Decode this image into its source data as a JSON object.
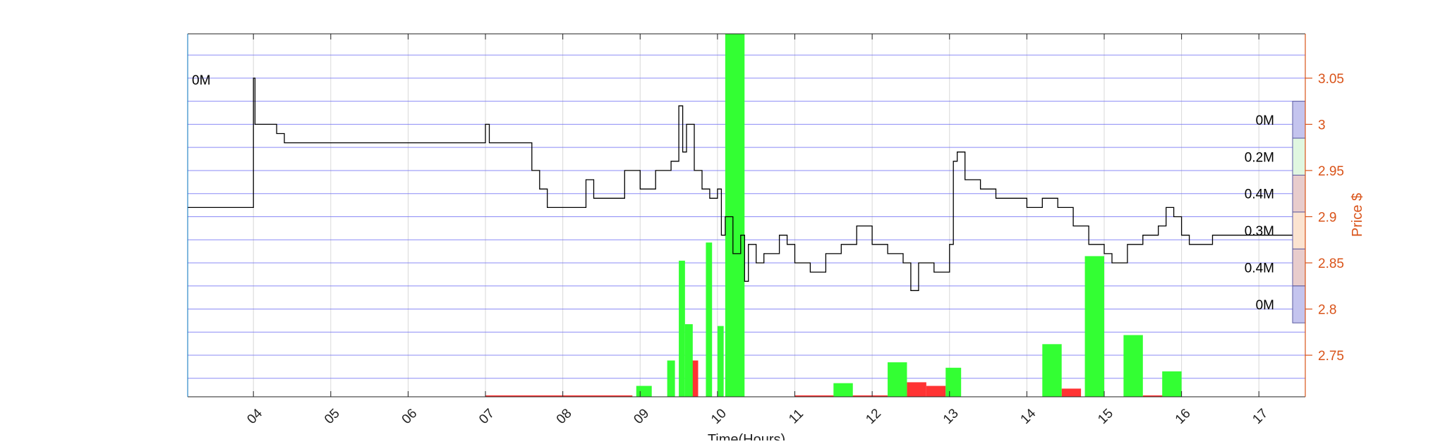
{
  "chart_data": {
    "type": "line",
    "xlabel": "Time(Hours)",
    "ylabel_right": "Price $",
    "x_ticks": [
      "04",
      "05",
      "06",
      "07",
      "08",
      "09",
      "10",
      "11",
      "12",
      "13",
      "14",
      "15",
      "16",
      "17"
    ],
    "x_range": [
      3.15,
      17.6
    ],
    "y_ticks": [
      2.75,
      2.8,
      2.85,
      2.9,
      2.95,
      3.0,
      3.05
    ],
    "y_range": [
      2.705,
      3.098
    ],
    "grid": true,
    "price_series": {
      "name": "Price",
      "points": [
        [
          3.15,
          2.91
        ],
        [
          4.0,
          2.91
        ],
        [
          4.0,
          3.05
        ],
        [
          4.02,
          3.0
        ],
        [
          4.2,
          3.0
        ],
        [
          4.3,
          2.99
        ],
        [
          4.4,
          2.98
        ],
        [
          5.5,
          2.98
        ],
        [
          6.9,
          2.98
        ],
        [
          7.0,
          3.0
        ],
        [
          7.05,
          2.98
        ],
        [
          7.5,
          2.98
        ],
        [
          7.6,
          2.95
        ],
        [
          7.7,
          2.93
        ],
        [
          7.8,
          2.91
        ],
        [
          8.0,
          2.91
        ],
        [
          8.3,
          2.94
        ],
        [
          8.4,
          2.92
        ],
        [
          8.7,
          2.92
        ],
        [
          8.8,
          2.95
        ],
        [
          9.0,
          2.93
        ],
        [
          9.2,
          2.95
        ],
        [
          9.4,
          2.96
        ],
        [
          9.5,
          3.02
        ],
        [
          9.55,
          2.97
        ],
        [
          9.6,
          3.0
        ],
        [
          9.7,
          2.95
        ],
        [
          9.8,
          2.93
        ],
        [
          9.9,
          2.92
        ],
        [
          10.0,
          2.93
        ],
        [
          10.05,
          2.88
        ],
        [
          10.1,
          2.9
        ],
        [
          10.2,
          2.86
        ],
        [
          10.3,
          2.88
        ],
        [
          10.35,
          2.83
        ],
        [
          10.4,
          2.87
        ],
        [
          10.5,
          2.85
        ],
        [
          10.6,
          2.86
        ],
        [
          10.8,
          2.88
        ],
        [
          10.9,
          2.87
        ],
        [
          11.0,
          2.85
        ],
        [
          11.2,
          2.84
        ],
        [
          11.4,
          2.86
        ],
        [
          11.6,
          2.87
        ],
        [
          11.8,
          2.89
        ],
        [
          12.0,
          2.87
        ],
        [
          12.2,
          2.86
        ],
        [
          12.4,
          2.85
        ],
        [
          12.5,
          2.82
        ],
        [
          12.6,
          2.85
        ],
        [
          12.8,
          2.84
        ],
        [
          12.9,
          2.84
        ],
        [
          13.0,
          2.87
        ],
        [
          13.05,
          2.96
        ],
        [
          13.1,
          2.97
        ],
        [
          13.2,
          2.94
        ],
        [
          13.4,
          2.93
        ],
        [
          13.6,
          2.92
        ],
        [
          13.8,
          2.92
        ],
        [
          14.0,
          2.91
        ],
        [
          14.2,
          2.92
        ],
        [
          14.4,
          2.91
        ],
        [
          14.6,
          2.89
        ],
        [
          14.8,
          2.87
        ],
        [
          15.0,
          2.86
        ],
        [
          15.1,
          2.85
        ],
        [
          15.3,
          2.87
        ],
        [
          15.5,
          2.88
        ],
        [
          15.7,
          2.89
        ],
        [
          15.8,
          2.91
        ],
        [
          15.9,
          2.9
        ],
        [
          16.0,
          2.88
        ],
        [
          16.1,
          2.87
        ],
        [
          16.4,
          2.88
        ],
        [
          16.6,
          2.88
        ],
        [
          17.6,
          2.88
        ]
      ]
    },
    "volume_bars": {
      "buy_color": "#33ff33",
      "sell_color": "#ff3333",
      "buy": [
        [
          8.95,
          9.15,
          0.012
        ],
        [
          9.35,
          9.45,
          0.04
        ],
        [
          9.5,
          9.58,
          0.15
        ],
        [
          9.58,
          9.68,
          0.08
        ],
        [
          9.85,
          9.93,
          0.17
        ],
        [
          10.0,
          10.08,
          0.078
        ],
        [
          10.1,
          10.35,
          0.4
        ],
        [
          11.5,
          11.75,
          0.015
        ],
        [
          12.2,
          12.45,
          0.038
        ],
        [
          12.95,
          13.15,
          0.032
        ],
        [
          14.2,
          14.45,
          0.058
        ],
        [
          14.75,
          15.0,
          0.155
        ],
        [
          15.25,
          15.5,
          0.068
        ],
        [
          15.75,
          16.0,
          0.028
        ]
      ],
      "sell": [
        [
          9.65,
          9.75,
          0.04
        ],
        [
          12.45,
          12.7,
          0.016
        ],
        [
          12.7,
          12.95,
          0.012
        ],
        [
          14.45,
          14.7,
          0.009
        ],
        [
          7.0,
          8.9,
          0.0015
        ],
        [
          11.0,
          12.2,
          0.0015
        ],
        [
          15.5,
          16.0,
          0.0015
        ]
      ]
    },
    "volume_by_price": {
      "labels": [
        "0M",
        "0.2M",
        "0.4M",
        "0.3M",
        "0.4M",
        "0M"
      ],
      "colors": [
        "#c4c4ee",
        "#e0f7e0",
        "#e8cccc",
        "#fbe3d0",
        "#e8cccc",
        "#c4c4ee"
      ],
      "top_label": "0M"
    },
    "colors": {
      "axis_right": "#d95319",
      "price_line": "#000000",
      "grid_blue": "#6f6ff3"
    }
  }
}
